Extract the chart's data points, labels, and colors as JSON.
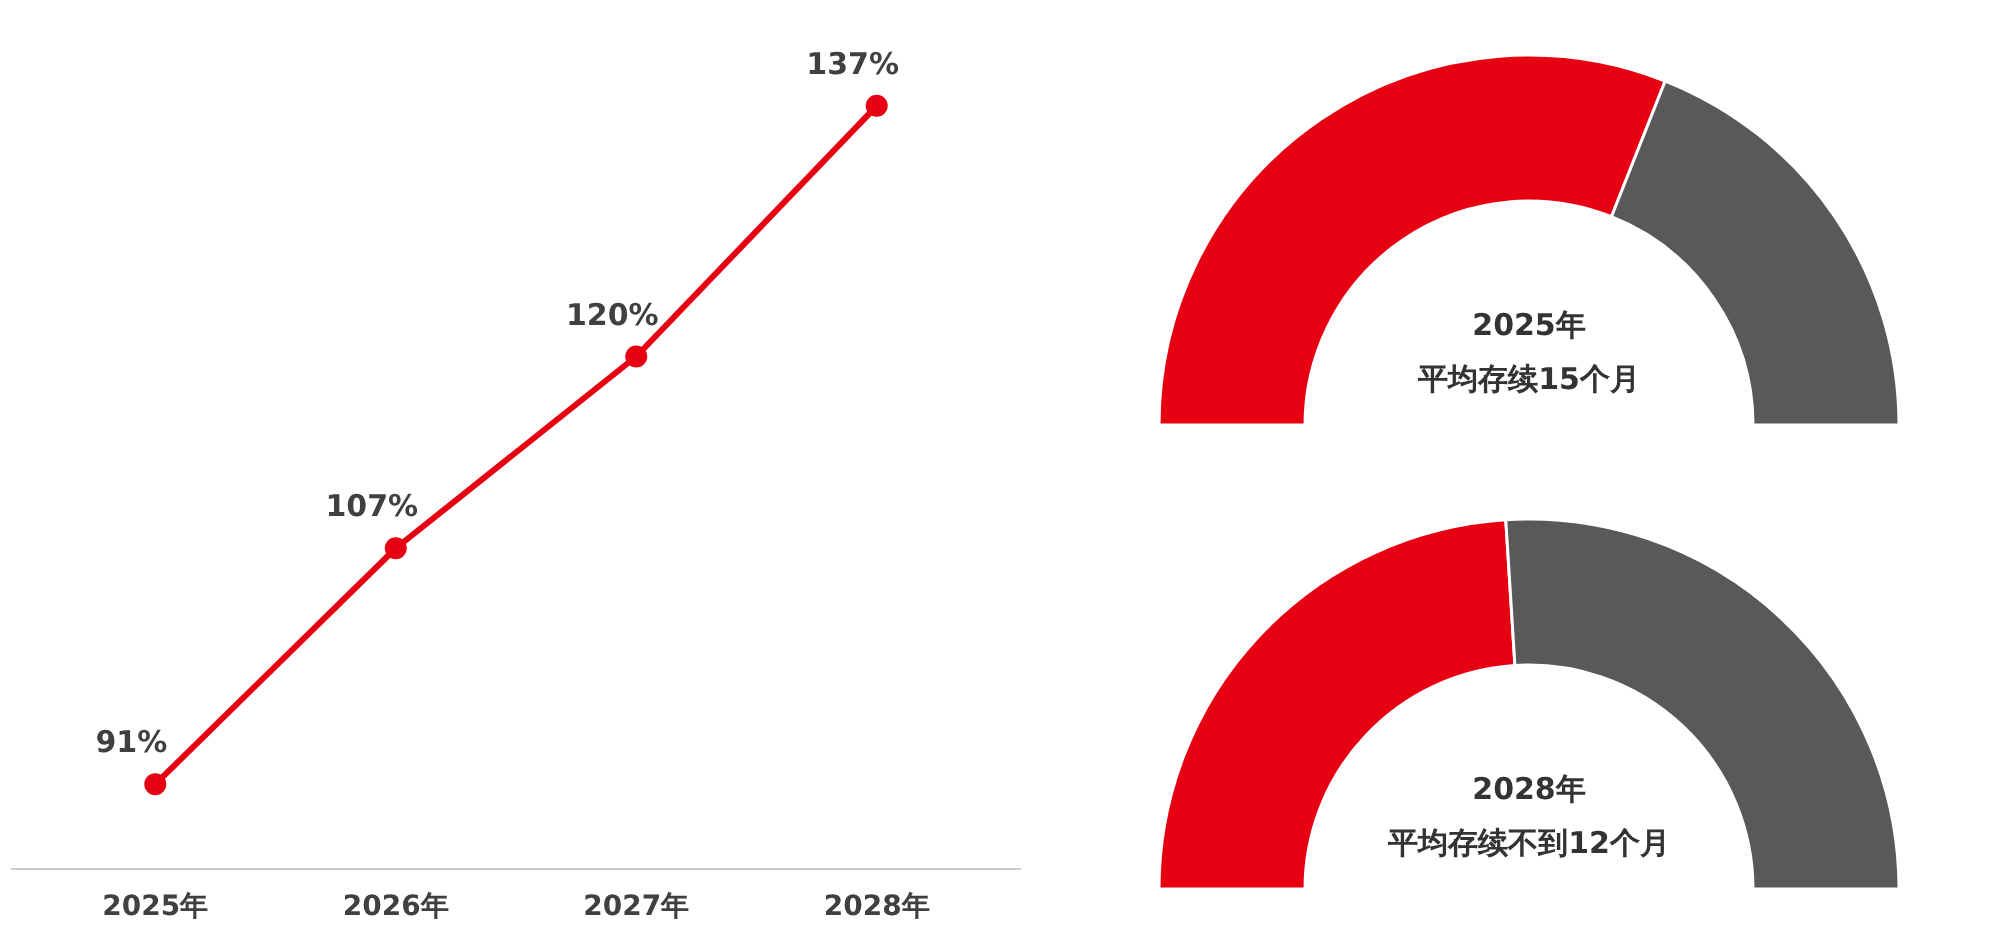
{
  "chart_data": [
    {
      "type": "line",
      "categories": [
        "2025年",
        "2026年",
        "2027年",
        "2028年"
      ],
      "series": [
        {
          "color": "#e60012",
          "values": [
            91,
            107,
            120,
            137
          ],
          "value_labels": [
            "91%",
            "107%",
            "120%",
            "137%"
          ]
        }
      ],
      "marker": "circle",
      "grid": false,
      "tick_labels": "x"
    },
    {
      "type": "donut",
      "categories": [
        null,
        null
      ],
      "values": [
        62,
        38
      ],
      "colors": [
        "#e60012",
        "#595959"
      ],
      "annotations": [
        "2025年",
        "平均存续15个月"
      ]
    },
    {
      "type": "donut",
      "categories": [
        null,
        null
      ],
      "values": [
        48,
        52
      ],
      "colors": [
        "#e60012",
        "#595959"
      ],
      "annotations": [
        "2028年",
        "平均存续不到12个月"
      ]
    }
  ]
}
